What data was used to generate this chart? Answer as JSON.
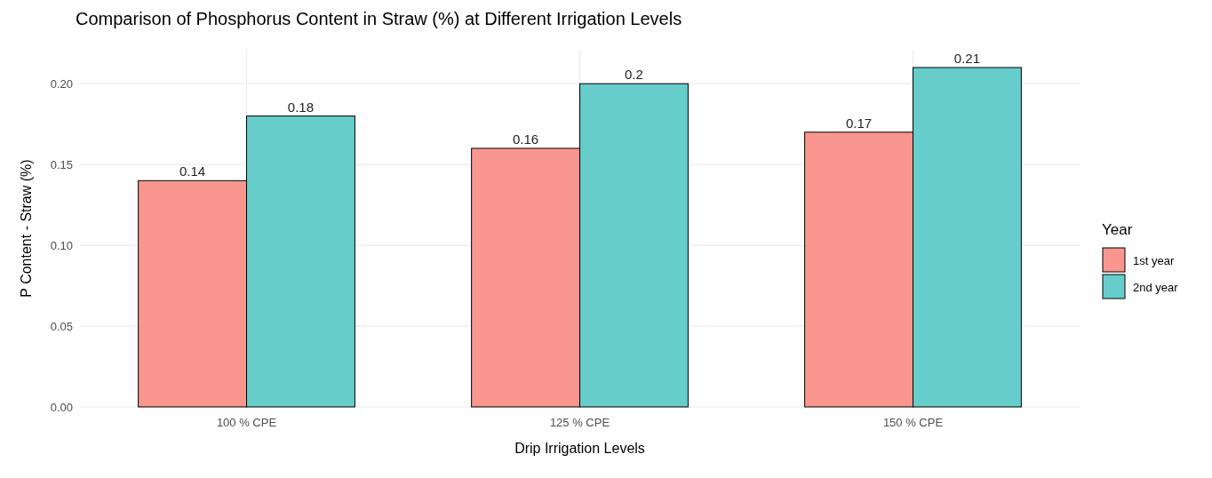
{
  "chart_data": {
    "type": "bar",
    "title": "Comparison of Phosphorus Content in Straw (%) at Different Irrigation Levels",
    "xlabel": "Drip Irrigation Levels",
    "ylabel": "P Content - Straw (%)",
    "legend_title": "Year",
    "categories": [
      "100 % CPE",
      "125 % CPE",
      "150 % CPE"
    ],
    "series": [
      {
        "name": "1st year",
        "color": "#f8968f",
        "values": [
          0.14,
          0.16,
          0.17
        ]
      },
      {
        "name": "2nd year",
        "color": "#66cdcb",
        "values": [
          0.18,
          0.2,
          0.21
        ]
      }
    ],
    "ylim": [
      0,
      0.221
    ],
    "yticks": [
      {
        "value": 0,
        "label": "0.00"
      },
      {
        "value": 0.05,
        "label": "0.05"
      },
      {
        "value": 0.1,
        "label": "0.10"
      },
      {
        "value": 0.15,
        "label": "0.15"
      },
      {
        "value": 0.2,
        "label": "0.20"
      }
    ],
    "grid": true,
    "legend": "right",
    "data_labels": true
  }
}
